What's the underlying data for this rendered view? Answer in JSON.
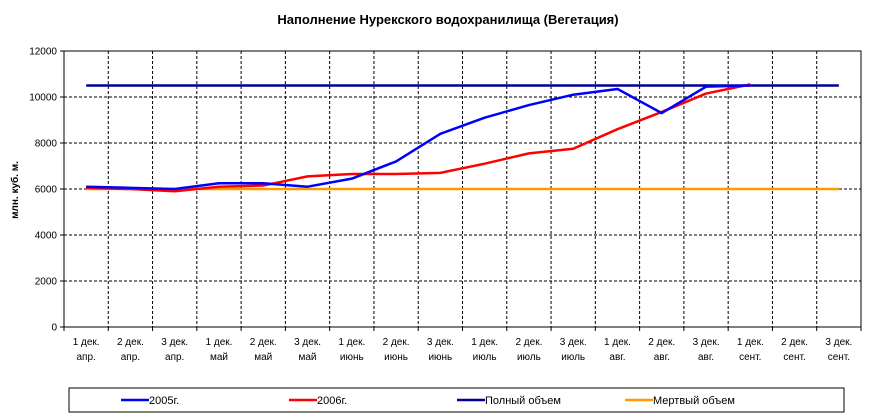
{
  "chart_data": {
    "type": "line",
    "title": "Наполнение Нурекского водохранилища (Вегетация)",
    "xlabel": "",
    "ylabel": "млн. куб. м.",
    "ylim": [
      0,
      12000
    ],
    "yticks": [
      0,
      2000,
      4000,
      6000,
      8000,
      10000,
      12000
    ],
    "grid": true,
    "legend_position": "bottom",
    "categories": [
      [
        "1 дек.",
        "апр."
      ],
      [
        "2 дек.",
        "апр."
      ],
      [
        "3 дек.",
        "апр."
      ],
      [
        "1 дек.",
        "май"
      ],
      [
        "2 дек.",
        "май"
      ],
      [
        "3 дек.",
        "май"
      ],
      [
        "1 дек.",
        "июнь"
      ],
      [
        "2 дек.",
        "июнь"
      ],
      [
        "3 дек.",
        "июнь"
      ],
      [
        "1 дек.",
        "июль"
      ],
      [
        "2 дек.",
        "июль"
      ],
      [
        "3 дек.",
        "июль"
      ],
      [
        "1 дек.",
        "авг."
      ],
      [
        "2 дек.",
        "авг."
      ],
      [
        "3 дек.",
        "авг."
      ],
      [
        "1 дек.",
        "сент."
      ],
      [
        "2 дек.",
        "сент."
      ],
      [
        "3 дек.",
        "сент."
      ]
    ],
    "series": [
      {
        "name": "2005г.",
        "color": "#0000ff",
        "values": [
          6100,
          6050,
          6000,
          6250,
          6250,
          6100,
          6450,
          7200,
          8400,
          9100,
          9650,
          10100,
          10350,
          9300,
          10450,
          10500,
          null,
          null
        ]
      },
      {
        "name": "2006г.",
        "color": "#ff0000",
        "values": [
          6050,
          6000,
          5900,
          6100,
          6150,
          6550,
          6650,
          6650,
          6700,
          7100,
          7550,
          7750,
          8600,
          9350,
          10150,
          10550,
          null,
          null
        ]
      },
      {
        "name": "Полный объем",
        "color": "#000099",
        "values": [
          10500,
          10500,
          10500,
          10500,
          10500,
          10500,
          10500,
          10500,
          10500,
          10500,
          10500,
          10500,
          10500,
          10500,
          10500,
          10500,
          10500,
          10500
        ]
      },
      {
        "name": "Мертвый объем",
        "color": "#ff9900",
        "values": [
          6000,
          6000,
          6000,
          6000,
          6000,
          6000,
          6000,
          6000,
          6000,
          6000,
          6000,
          6000,
          6000,
          6000,
          6000,
          6000,
          6000,
          6000
        ]
      }
    ]
  }
}
